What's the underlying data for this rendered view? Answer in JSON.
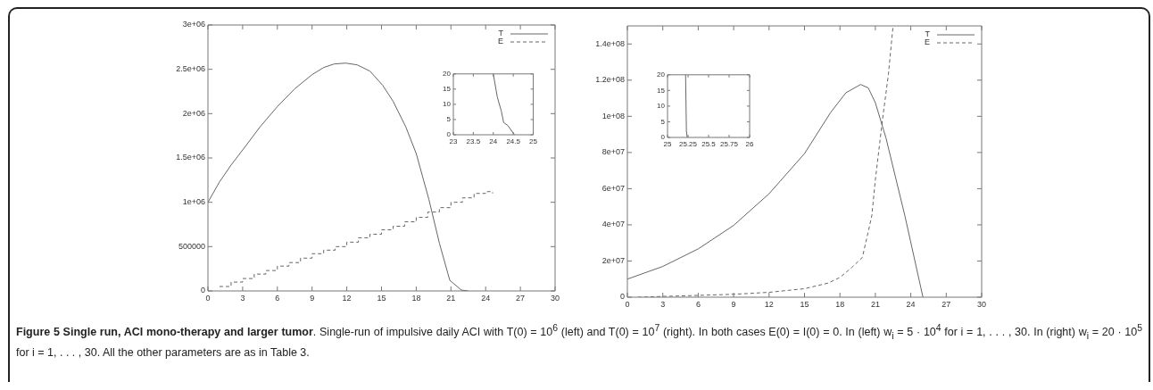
{
  "chart_data": [
    {
      "type": "line",
      "xlim": [
        0,
        30
      ],
      "ylim": [
        0,
        3000000
      ],
      "xticks": [
        0,
        3,
        6,
        9,
        12,
        15,
        18,
        21,
        24,
        27,
        30
      ],
      "yticks": [
        0,
        500000,
        {
          "value": 1000000,
          "label": "1e+06"
        },
        {
          "value": 1500000,
          "label": "1.5e+06"
        },
        {
          "value": 2000000,
          "label": "2e+06"
        },
        {
          "value": 2500000,
          "label": "2.5e+06"
        },
        {
          "value": 3000000,
          "label": "3e+06"
        }
      ],
      "legend": "top right",
      "series": [
        {
          "name": "T",
          "color": "#666666",
          "line_style": "solid",
          "x": [
            0,
            1,
            2,
            3,
            4.5,
            6,
            7.5,
            9,
            10,
            10.9,
            11.9,
            12.9,
            14,
            15.1,
            16,
            17.1,
            18,
            19.1,
            20,
            20.9,
            21.9,
            22.5
          ],
          "values": [
            1000000,
            1230000,
            1420000,
            1590000,
            1850000,
            2080000,
            2280000,
            2440000,
            2520000,
            2560000,
            2570000,
            2550000,
            2480000,
            2320000,
            2140000,
            1850000,
            1550000,
            1030000,
            540000,
            120000,
            10000,
            0
          ]
        },
        {
          "name": "E",
          "type": "step",
          "color": "#666666",
          "line_style": "dashed",
          "x": [
            1,
            2,
            3,
            4,
            5,
            6,
            7,
            8,
            9,
            10,
            11,
            12,
            13,
            14,
            15,
            16,
            17,
            18,
            19,
            20,
            21,
            22,
            23,
            24,
            24.6
          ],
          "values": [
            50000,
            100000,
            140000,
            190000,
            230000,
            280000,
            320000,
            370000,
            420000,
            460000,
            500000,
            550000,
            600000,
            640000,
            690000,
            730000,
            780000,
            830000,
            890000,
            940000,
            1000000,
            1050000,
            1100000,
            1120000,
            1100000
          ]
        }
      ],
      "annotations": [
        "Figure 5 Single run, ACI mono-therapy and larger tumor",
        ". Single-run of impulsive daily ACI with T(0) = 10$^{6}$ (left) and T(0) = 10$^{7}$ (right). In both cases E(0) = I(0) = 0. In (left) w$_{i}$ = 5 · 10$^{4}$ for i = 1, . . . , 30. In (right) w$_{i}$ = 20 · 10$^{5}$ for i = 1, . . . , 30. All the other parameters are as in Table 3."
      ]
    },
    {
      "type": "line",
      "xlim": [
        23,
        25
      ],
      "ylim": [
        0,
        20
      ],
      "xticks": [
        23,
        23.5,
        24,
        24.5,
        25
      ],
      "yticks": [
        0,
        5,
        10,
        15,
        20
      ],
      "series": [
        {
          "color": "#666666",
          "line_style": "solid",
          "x": [
            24.0,
            24.1,
            24.2,
            24.26,
            24.36,
            24.5,
            24.53
          ],
          "values": [
            20,
            12.4,
            7.8,
            4,
            3.1,
            0.5,
            0
          ]
        }
      ]
    },
    {
      "type": "line",
      "xlim": [
        0,
        30
      ],
      "ylim": [
        0,
        150000000
      ],
      "xticks": [
        0,
        3,
        6,
        9,
        12,
        15,
        18,
        21,
        24,
        27,
        30
      ],
      "yticks": [
        0,
        {
          "value": 20000000,
          "label": "2e+07"
        },
        {
          "value": 40000000,
          "label": "4e+07"
        },
        {
          "value": 60000000,
          "label": "6e+07"
        },
        {
          "value": 80000000,
          "label": "8e+07"
        },
        {
          "value": 100000000,
          "label": "1e+08"
        },
        {
          "value": 120000000,
          "label": "1.2e+08"
        },
        {
          "value": 140000000,
          "label": "1.4e+08"
        }
      ],
      "legend": "top right",
      "series": [
        {
          "name": "T",
          "color": "#666666",
          "line_style": "solid",
          "x": [
            0,
            3,
            6,
            9,
            12,
            15,
            17.2,
            18.5,
            19.75,
            20.4,
            21,
            21.9,
            23.5,
            25.03
          ],
          "values": [
            10000000,
            17000000,
            26700000,
            39700000,
            57200000,
            79400000,
            102000000,
            113000000,
            117600000,
            115700000,
            107500000,
            88000000,
            45000000,
            0
          ]
        },
        {
          "name": "E",
          "color": "#666666",
          "line_style": "dashed",
          "x": [
            0.9,
            6,
            9,
            12,
            15,
            17,
            18,
            19,
            19.9,
            20.7,
            21,
            21.6,
            22.1,
            22.5
          ],
          "values": [
            0,
            1000000,
            1600000,
            2700000,
            4700000,
            7800000,
            10900000,
            16400000,
            22000000,
            45000000,
            65000000,
            98000000,
            123000000,
            150000000
          ]
        }
      ]
    },
    {
      "type": "line",
      "xlim": [
        25,
        26
      ],
      "ylim": [
        0,
        20
      ],
      "xticks": [
        25,
        25.25,
        25.5,
        25.75,
        26
      ],
      "yticks": [
        0,
        5,
        10,
        15,
        20
      ],
      "series": [
        {
          "color": "#666666",
          "line_style": "solid",
          "x": [
            25.22,
            25.23,
            25.24
          ],
          "values": [
            20,
            2,
            0
          ]
        }
      ]
    }
  ]
}
